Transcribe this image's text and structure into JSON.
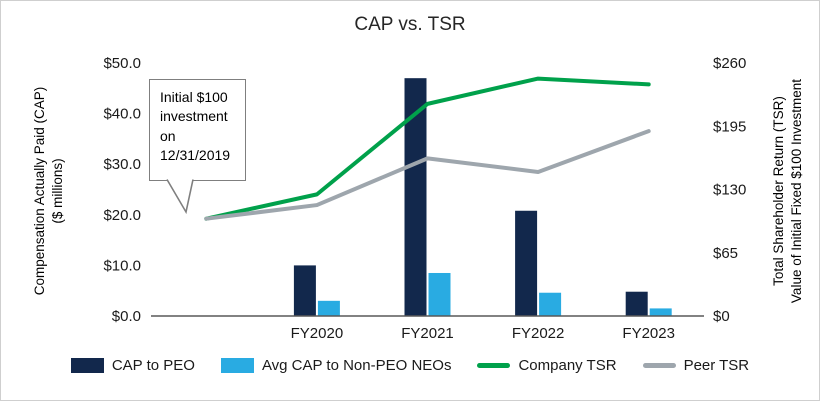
{
  "title": "CAP vs. TSR",
  "left_axis_title": {
    "line1": "Compensation Actually Paid (CAP)",
    "line2": "($ millions)"
  },
  "right_axis_title": {
    "line1": "Total Shareholder Return (TSR)",
    "line2": "Value of Initial Fixed $100 Investment"
  },
  "callout": {
    "lines": [
      "Initial $100",
      "investment",
      "on",
      "12/31/2019"
    ]
  },
  "legend": {
    "items": [
      {
        "label": "CAP to PEO",
        "color": "#12284C",
        "marker": "square"
      },
      {
        "label": "Avg CAP to Non-PEO NEOs",
        "color": "#29ABE2",
        "marker": "square"
      },
      {
        "label": "Company TSR",
        "color": "#00A14B",
        "marker": "line"
      },
      {
        "label": "Peer TSR",
        "color": "#9EA6AD",
        "marker": "line"
      }
    ]
  },
  "chart_data": {
    "type": "bar",
    "subtype": "combo bar + line with dual y-axes",
    "title": "CAP vs. TSR",
    "categories": [
      "12/31/2019",
      "FY2020",
      "FY2021",
      "FY2022",
      "FY2023"
    ],
    "category_labels_visible": [
      false,
      true,
      true,
      true,
      true
    ],
    "bar_series": [
      {
        "name": "CAP to PEO",
        "axis": "left",
        "color": "#12284C",
        "values": [
          null,
          10.0,
          47.0,
          20.8,
          4.8
        ]
      },
      {
        "name": "Avg CAP to Non-PEO NEOs",
        "axis": "left",
        "color": "#29ABE2",
        "values": [
          null,
          3.0,
          8.5,
          4.6,
          1.5
        ]
      }
    ],
    "line_series": [
      {
        "name": "Company TSR",
        "axis": "right",
        "color": "#00A14B",
        "values": [
          100,
          125,
          218,
          244,
          238
        ]
      },
      {
        "name": "Peer TSR",
        "axis": "right",
        "color": "#9EA6AD",
        "values": [
          100,
          114,
          162,
          148,
          190
        ]
      }
    ],
    "left_axis": {
      "label": "Compensation Actually Paid (CAP) ($ millions)",
      "range": [
        0,
        50
      ],
      "tick_values": [
        0,
        10,
        20,
        30,
        40,
        50
      ],
      "tick_labels": [
        "$0.0",
        "$10.0",
        "$20.0",
        "$30.0",
        "$40.0",
        "$50.0"
      ]
    },
    "right_axis": {
      "label": "Total Shareholder Return (TSR) Value of Initial Fixed $100 Investment",
      "range": [
        0,
        260
      ],
      "tick_values": [
        0,
        65,
        130,
        195,
        260
      ],
      "tick_labels": [
        "$0",
        "$65",
        "$130",
        "$195",
        "$260"
      ]
    },
    "grid": false,
    "legend_position": "bottom",
    "annotation": "Initial $100 investment on 12/31/2019"
  }
}
